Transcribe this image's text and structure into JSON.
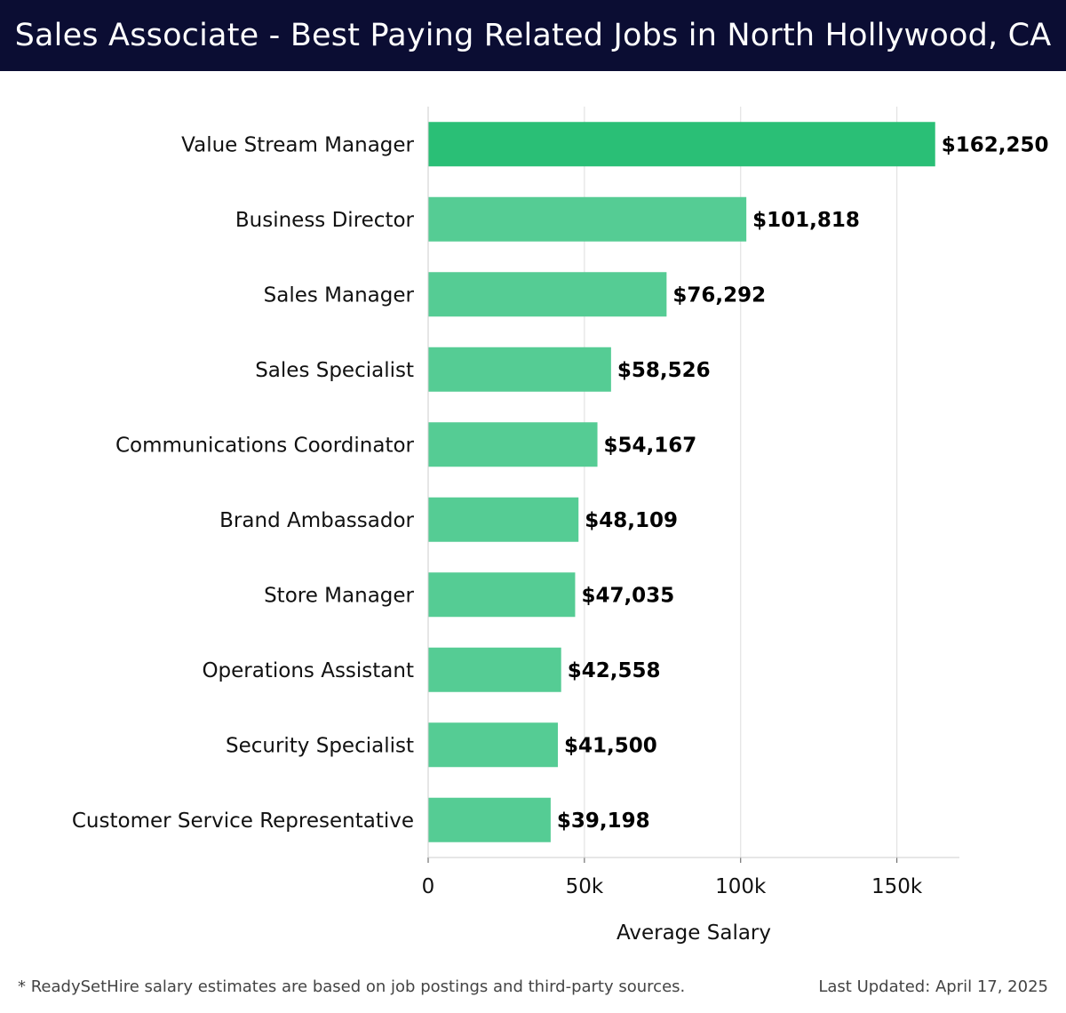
{
  "header": {
    "title": "Sales Associate - Best Paying Related Jobs in North Hollywood, CA"
  },
  "colors": {
    "header_bg": "#0b0d33",
    "bar_top": "#2abf76",
    "bar": "#55cc94",
    "grid": "#dddddd"
  },
  "chart_data": {
    "type": "bar",
    "orientation": "horizontal",
    "categories": [
      "Value Stream Manager",
      "Business Director",
      "Sales Manager",
      "Sales Specialist",
      "Communications Coordinator",
      "Brand Ambassador",
      "Store Manager",
      "Operations Assistant",
      "Security Specialist",
      "Customer Service Representative"
    ],
    "values": [
      162250,
      101818,
      76292,
      58526,
      54167,
      48109,
      47035,
      42558,
      41500,
      39198
    ],
    "value_labels": [
      "$162,250",
      "$101,818",
      "$76,292",
      "$58,526",
      "$54,167",
      "$48,109",
      "$47,035",
      "$42,558",
      "$41,500",
      "$39,198"
    ],
    "xlabel": "Average Salary",
    "ylabel": "",
    "xlim": [
      0,
      170000
    ],
    "xticks": [
      0,
      50000,
      100000,
      150000
    ],
    "xtick_labels": [
      "0",
      "50k",
      "100k",
      "150k"
    ],
    "grid": true
  },
  "footer": {
    "note": "* ReadySetHire salary estimates are based on job postings and third-party sources.",
    "updated": "Last Updated: April 17, 2025"
  }
}
